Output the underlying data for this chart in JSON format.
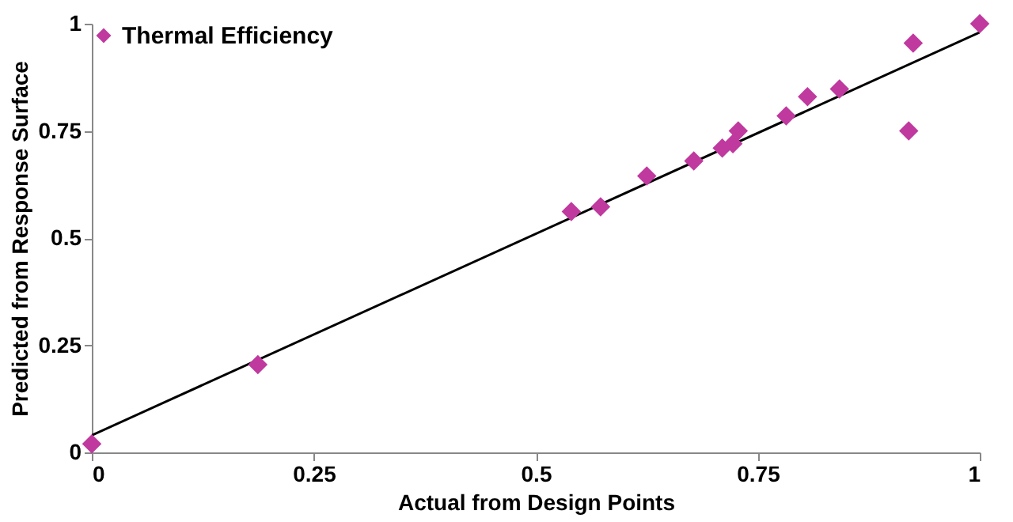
{
  "chart_data": {
    "type": "scatter",
    "xlabel": "Actual from Design Points",
    "ylabel": "Predicted from Response Surface",
    "xlim": [
      0,
      1
    ],
    "ylim": [
      0,
      1
    ],
    "xticks": [
      0,
      0.25,
      0.5,
      0.75,
      1
    ],
    "yticks": [
      0,
      0.25,
      0.5,
      0.75,
      1
    ],
    "grid": false,
    "legend": "top left",
    "marker": "diamond",
    "series": [
      {
        "name": "Thermal Efficiency",
        "color": "#c0399f",
        "x": [
          0,
          0.187,
          0.54,
          0.573,
          0.625,
          0.678,
          0.71,
          0.722,
          0.728,
          0.782,
          0.806,
          0.842,
          0.925,
          0.92,
          1
        ],
        "values": [
          0.02,
          0.205,
          0.562,
          0.573,
          0.645,
          0.68,
          0.71,
          0.72,
          0.75,
          0.785,
          0.83,
          0.848,
          0.955,
          0.75,
          1
        ]
      },
      {
        "type": "line",
        "marker": "none",
        "color": "#000000",
        "x": [
          0,
          1
        ],
        "values": [
          0.04,
          0.98
        ]
      }
    ]
  }
}
